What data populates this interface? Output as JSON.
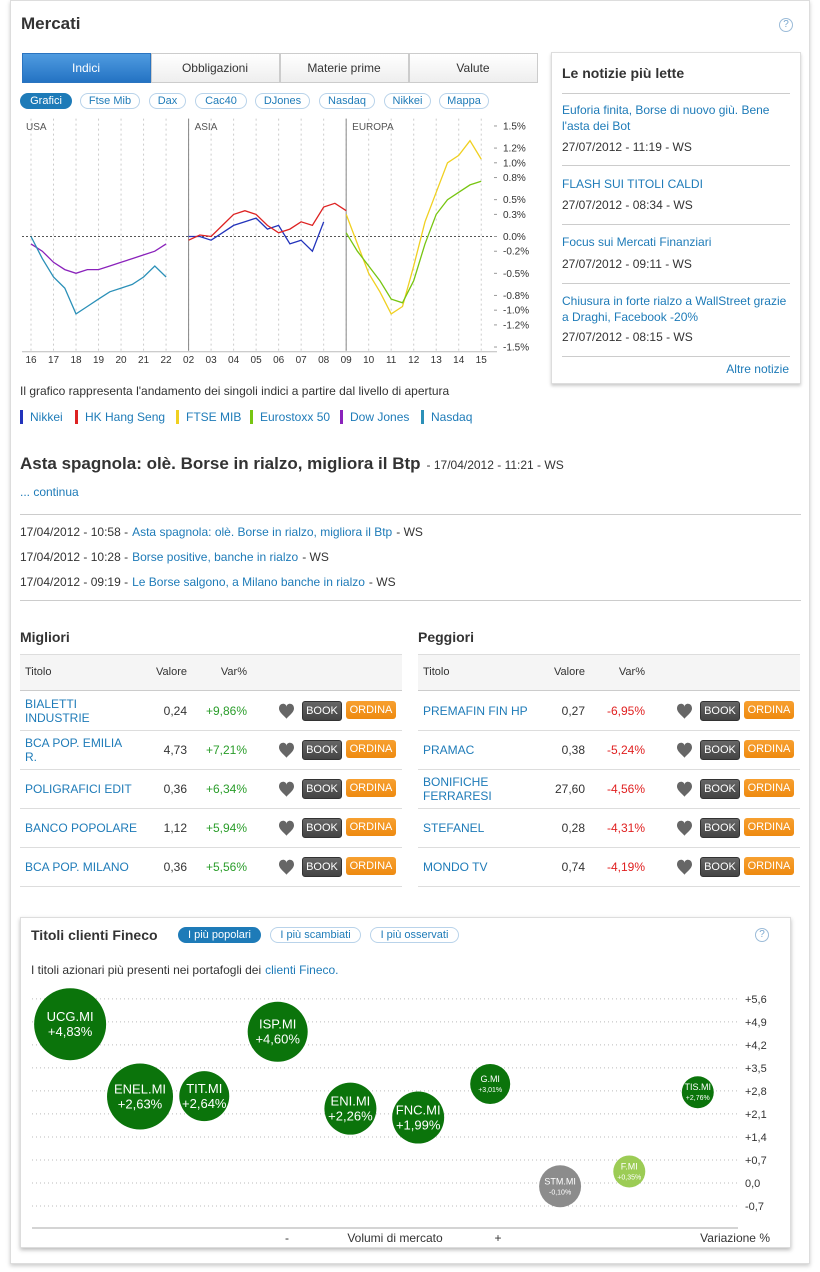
{
  "header": {
    "title": "Mercati",
    "help": "?"
  },
  "tabs": [
    "Indici",
    "Obbligazioni",
    "Materie prime",
    "Valute"
  ],
  "subtabs": [
    "Grafici",
    "Ftse Mib",
    "Dax",
    "Cac40",
    "DJones",
    "Nasdaq",
    "Nikkei",
    "Mappa"
  ],
  "chart_note": "Il grafico rappresenta l'andamento dei singoli indici a partire dal livello di apertura",
  "chart_data": [
    {
      "type": "line",
      "regions": [
        "USA",
        "ASIA",
        "EUROPA"
      ],
      "categories": [
        "16",
        "17",
        "18",
        "19",
        "20",
        "21",
        "22",
        "02",
        "03",
        "04",
        "05",
        "06",
        "07",
        "08",
        "09",
        "10",
        "11",
        "12",
        "13",
        "14",
        "15"
      ],
      "xlim": [
        -0.4,
        20.7
      ],
      "ylim": [
        -1.55,
        1.6
      ],
      "yticks": [
        {
          "value": 1.5,
          "label": "1.5%"
        },
        {
          "value": 1.2,
          "label": "1.2%"
        },
        {
          "value": 1.0,
          "label": "1.0%"
        },
        {
          "value": 0.8,
          "label": "0.8%"
        },
        {
          "value": 0.5,
          "label": "0.5%"
        },
        {
          "value": 0.3,
          "label": "0.3%"
        },
        {
          "value": 0,
          "label": "0.0%"
        },
        {
          "value": -0.2,
          "label": "-0.2%"
        },
        {
          "value": -0.5,
          "label": "-0.5%"
        },
        {
          "value": -0.8,
          "label": "-0.8%"
        },
        {
          "value": -1.0,
          "label": "-1.0%"
        },
        {
          "value": -1.2,
          "label": "-1.2%"
        },
        {
          "value": -1.5,
          "label": "-1.5%"
        }
      ],
      "series": [
        {
          "name": "Nikkei",
          "color": "#2233bb",
          "x": [
            7,
            7.5,
            8,
            8.5,
            9,
            9.5,
            10,
            10.5,
            11,
            11.5,
            12,
            12.5,
            13
          ],
          "values": [
            0,
            0,
            -0.05,
            0.05,
            0.15,
            0.2,
            0.25,
            0.1,
            0.15,
            -0.1,
            -0.05,
            -0.2,
            0.2
          ]
        },
        {
          "name": "HK Hang Seng",
          "color": "#dd2222",
          "x": [
            7,
            7.5,
            8,
            8.5,
            9,
            9.5,
            10,
            10.5,
            11,
            11.5,
            12,
            12.5,
            13,
            13.5,
            14
          ],
          "values": [
            -0.05,
            0.02,
            0,
            0.15,
            0.3,
            0.35,
            0.3,
            0.15,
            0.05,
            0.1,
            0.2,
            0.15,
            0.4,
            0.45,
            0.35
          ]
        },
        {
          "name": "FTSE MIB",
          "color": "#f0d020",
          "x": [
            14,
            14.5,
            15,
            15.5,
            16,
            16.5,
            17,
            17.5,
            18,
            18.5,
            19,
            19.5,
            20
          ],
          "values": [
            0.3,
            -0.1,
            -0.5,
            -0.75,
            -1.05,
            -0.95,
            -0.4,
            0.2,
            0.6,
            1.0,
            1.1,
            1.3,
            1.05
          ]
        },
        {
          "name": "Eurostoxx 50",
          "color": "#77c511",
          "x": [
            14,
            14.5,
            15,
            15.5,
            16,
            16.5,
            17,
            17.5,
            18,
            18.5,
            19,
            19.5,
            20
          ],
          "values": [
            0.05,
            -0.2,
            -0.4,
            -0.6,
            -0.85,
            -0.9,
            -0.6,
            -0.1,
            0.3,
            0.5,
            0.6,
            0.7,
            0.75
          ]
        },
        {
          "name": "Dow Jones",
          "color": "#8a22bb",
          "x": [
            0,
            0.5,
            1,
            1.5,
            2,
            2.5,
            3,
            3.5,
            4,
            4.5,
            5,
            5.5,
            6
          ],
          "values": [
            -0.1,
            -0.2,
            -0.35,
            -0.45,
            -0.5,
            -0.45,
            -0.45,
            -0.4,
            -0.35,
            -0.3,
            -0.25,
            -0.2,
            -0.1
          ]
        },
        {
          "name": "Nasdaq",
          "color": "#2b90b8",
          "x": [
            0,
            0.5,
            1,
            1.5,
            2,
            2.5,
            3,
            3.5,
            4,
            4.5,
            5,
            5.5,
            6
          ],
          "values": [
            0,
            -0.3,
            -0.55,
            -0.7,
            -1.05,
            -0.95,
            -0.85,
            -0.75,
            -0.7,
            -0.65,
            -0.55,
            -0.4,
            -0.55
          ]
        }
      ]
    },
    {
      "type": "bubble",
      "labels": [
        "UCG.MI",
        "ENEL.MI",
        "TIT.MI",
        "ISP.MI",
        "ENI.MI",
        "FNC.MI",
        "G.MI",
        "STM.MI",
        "F.MI",
        "TIS.MI"
      ],
      "x": [
        5.4,
        15.3,
        24.4,
        34.8,
        45.1,
        54.7,
        64.9,
        74.8,
        84.6,
        94.3
      ],
      "values": [
        4.83,
        2.63,
        2.64,
        4.6,
        2.26,
        1.99,
        3.01,
        -0.1,
        0.35,
        2.76
      ],
      "value_labels": [
        "+4,83%",
        "+2,63%",
        "+2,64%",
        "+4,60%",
        "+2,26%",
        "+1,99%",
        "+3,01%",
        "-0,10%",
        "+0,35%",
        "+2,76%"
      ],
      "sizes": [
        36,
        33,
        25,
        30,
        26,
        26,
        20,
        21,
        16,
        16
      ],
      "colors": [
        "#0b740b",
        "#0b740b",
        "#0b740b",
        "#0b740b",
        "#0b740b",
        "#0b740b",
        "#0b740b",
        "#8c8c8c",
        "#9ccc55",
        "#0b740b"
      ],
      "xlim": [
        0,
        100
      ],
      "ylim": [
        -1.37,
        5.87
      ],
      "yticks": [
        {
          "value": 5.6,
          "label": "+5,6"
        },
        {
          "value": 4.9,
          "label": "+4,9"
        },
        {
          "value": 4.2,
          "label": "+4,2"
        },
        {
          "value": 3.5,
          "label": "+3,5"
        },
        {
          "value": 2.8,
          "label": "+2,8"
        },
        {
          "value": 2.1,
          "label": "+2,1"
        },
        {
          "value": 1.4,
          "label": "+1,4"
        },
        {
          "value": 0.7,
          "label": "+0,7"
        },
        {
          "value": 0,
          "label": "0,0"
        },
        {
          "value": -0.7,
          "label": "-0,7"
        }
      ],
      "x_labels": [
        "-",
        "Volumi di mercato",
        "+"
      ],
      "y_label": "Variazione %"
    }
  ],
  "news": {
    "title": "Le notizie più lette",
    "items": [
      {
        "title": "Euforia finita, Borse di nuovo giù. Bene l'asta dei Bot",
        "date": "27/07/2012 - 11:19 - WS"
      },
      {
        "title": "FLASH SUI TITOLI CALDI",
        "date": "27/07/2012 - 08:34 - WS"
      },
      {
        "title": "Focus sui Mercati Finanziari",
        "date": "27/07/2012 - 09:11 - WS"
      },
      {
        "title": "Chiusura in forte rialzo a WallStreet grazie a Draghi, Facebook -20%",
        "date": "27/07/2012 - 08:15 - WS"
      }
    ],
    "more": "Altre notizie"
  },
  "headline": {
    "title": "Asta spagnola: olè. Borse in rialzo, migliora il Btp",
    "meta": "- 17/04/2012 - 11:21 - WS",
    "more": "... continua"
  },
  "related": [
    {
      "date": "17/04/2012 - 10:58 -",
      "title": "Asta spagnola: olè. Borse in rialzo, migliora il Btp",
      "source": "- WS"
    },
    {
      "date": "17/04/2012 - 10:28 -",
      "title": "Borse positive, banche in rialzo",
      "source": "- WS"
    },
    {
      "date": "17/04/2012 - 09:19 -",
      "title": "Le Borse salgono, a Milano banche in rialzo",
      "source": "- WS"
    }
  ],
  "tables": [
    {
      "title": "Migliori",
      "columns": [
        "Titolo",
        "Valore",
        "Var%"
      ],
      "rows": [
        [
          "BIALETTI INDUSTRIE",
          "0,24",
          "+9,86%"
        ],
        [
          "BCA POP. EMILIA R.",
          "4,73",
          "+7,21%"
        ],
        [
          "POLIGRAFICI EDIT",
          "0,36",
          "+6,34%"
        ],
        [
          "BANCO POPOLARE",
          "1,12",
          "+5,94%"
        ],
        [
          "BCA POP. MILANO",
          "0,36",
          "+5,56%"
        ]
      ]
    },
    {
      "title": "Peggiori",
      "columns": [
        "Titolo",
        "Valore",
        "Var%"
      ],
      "rows": [
        [
          "PREMAFIN FIN HP",
          "0,27",
          "-6,95%"
        ],
        [
          "PRAMAC",
          "0,38",
          "-5,24%"
        ],
        [
          "BONIFICHE FERRARESI",
          "27,60",
          "-4,56%"
        ],
        [
          "STEFANEL",
          "0,28",
          "-4,31%"
        ],
        [
          "MONDO TV",
          "0,74",
          "-4,19%"
        ]
      ]
    }
  ],
  "buttons": [
    "BOOK",
    "ORDINA"
  ],
  "fineco": {
    "title": "Titoli clienti Fineco",
    "tabs": [
      "I più popolari",
      "I più scambiati",
      "I più osservati"
    ],
    "help": "?",
    "description": "I titoli azionari più presenti nei portafogli dei",
    "link": "clienti Fineco",
    "period": "."
  }
}
